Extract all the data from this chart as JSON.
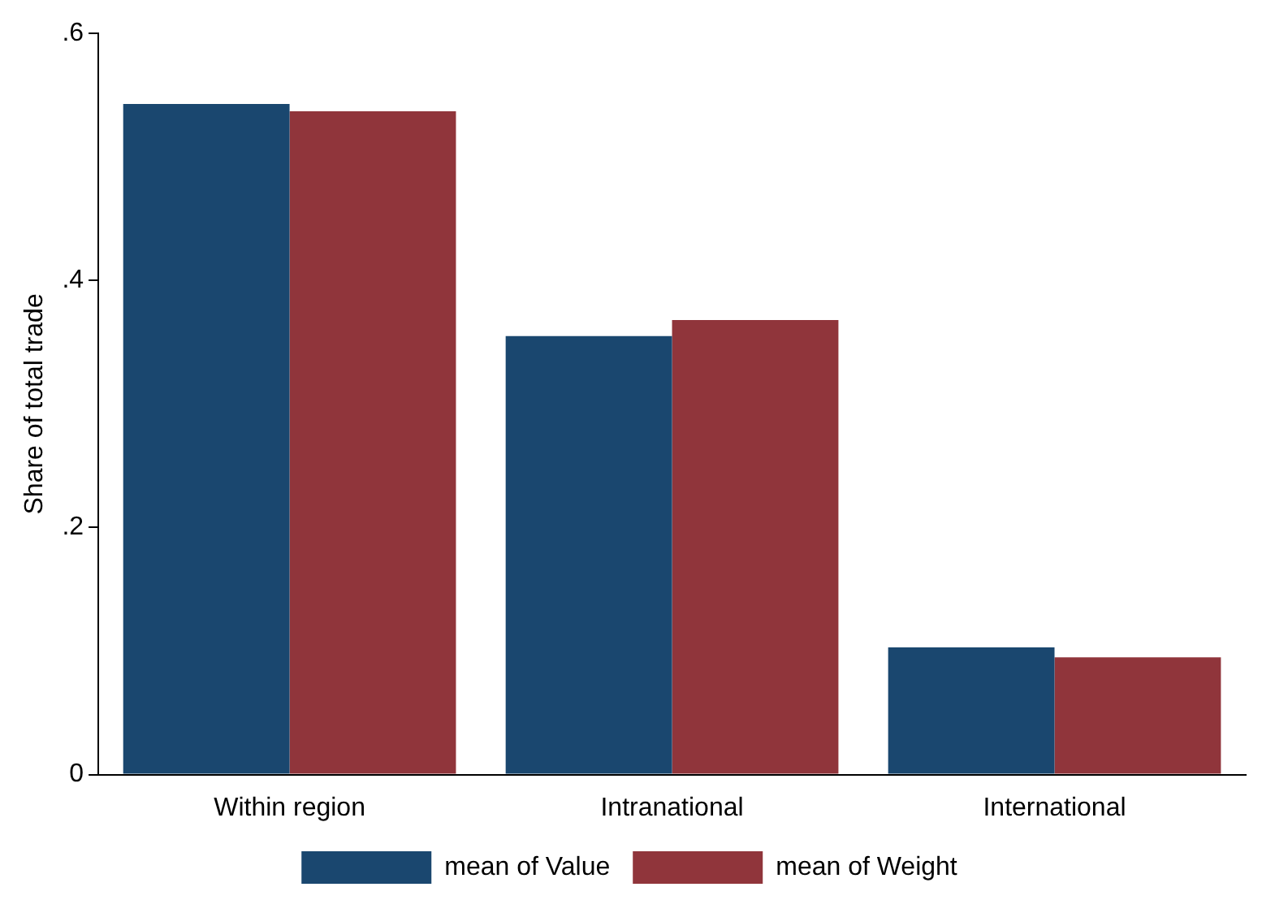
{
  "chart_data": {
    "type": "bar",
    "ylabel": "Share of total trade",
    "categories": [
      "Within region",
      "Intranational",
      "International"
    ],
    "series": [
      {
        "name": "mean of Value",
        "color": "#1a476f",
        "values": [
          0.543,
          0.355,
          0.103
        ]
      },
      {
        "name": "mean of Weight",
        "color": "#90353b",
        "values": [
          0.537,
          0.368,
          0.095
        ]
      }
    ],
    "ylim": [
      0,
      0.6
    ],
    "yticks": [
      {
        "value": 0,
        "label": "0"
      },
      {
        "value": 0.2,
        "label": ".2"
      },
      {
        "value": 0.4,
        "label": ".4"
      },
      {
        "value": 0.6,
        "label": ".6"
      }
    ],
    "grid": false,
    "legend": "bottom"
  }
}
